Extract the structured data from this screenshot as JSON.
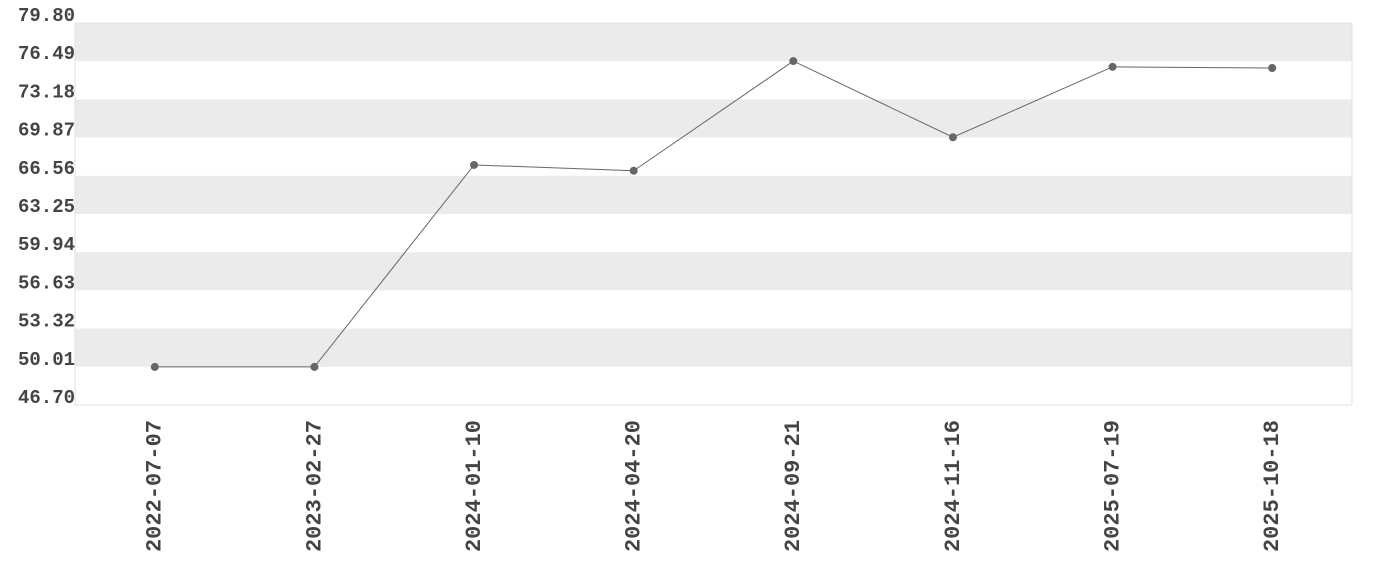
{
  "chart_data": {
    "type": "line",
    "categories": [
      "2022-07-07",
      "2023-02-27",
      "2024-01-10",
      "2024-04-20",
      "2024-09-21",
      "2024-11-16",
      "2025-07-19",
      "2025-10-18"
    ],
    "values": [
      50.0,
      50.0,
      67.5,
      67.0,
      76.5,
      69.9,
      76.0,
      75.9
    ],
    "color": "#666666",
    "ylim": [
      46.7,
      79.8
    ],
    "yticks": [
      {
        "value": 46.7,
        "label": "46.70"
      },
      50.01,
      53.32,
      56.63,
      59.94,
      63.25,
      66.56,
      69.87,
      73.18,
      76.49,
      {
        "value": 79.8,
        "label": "79.80"
      }
    ],
    "grid": true
  }
}
